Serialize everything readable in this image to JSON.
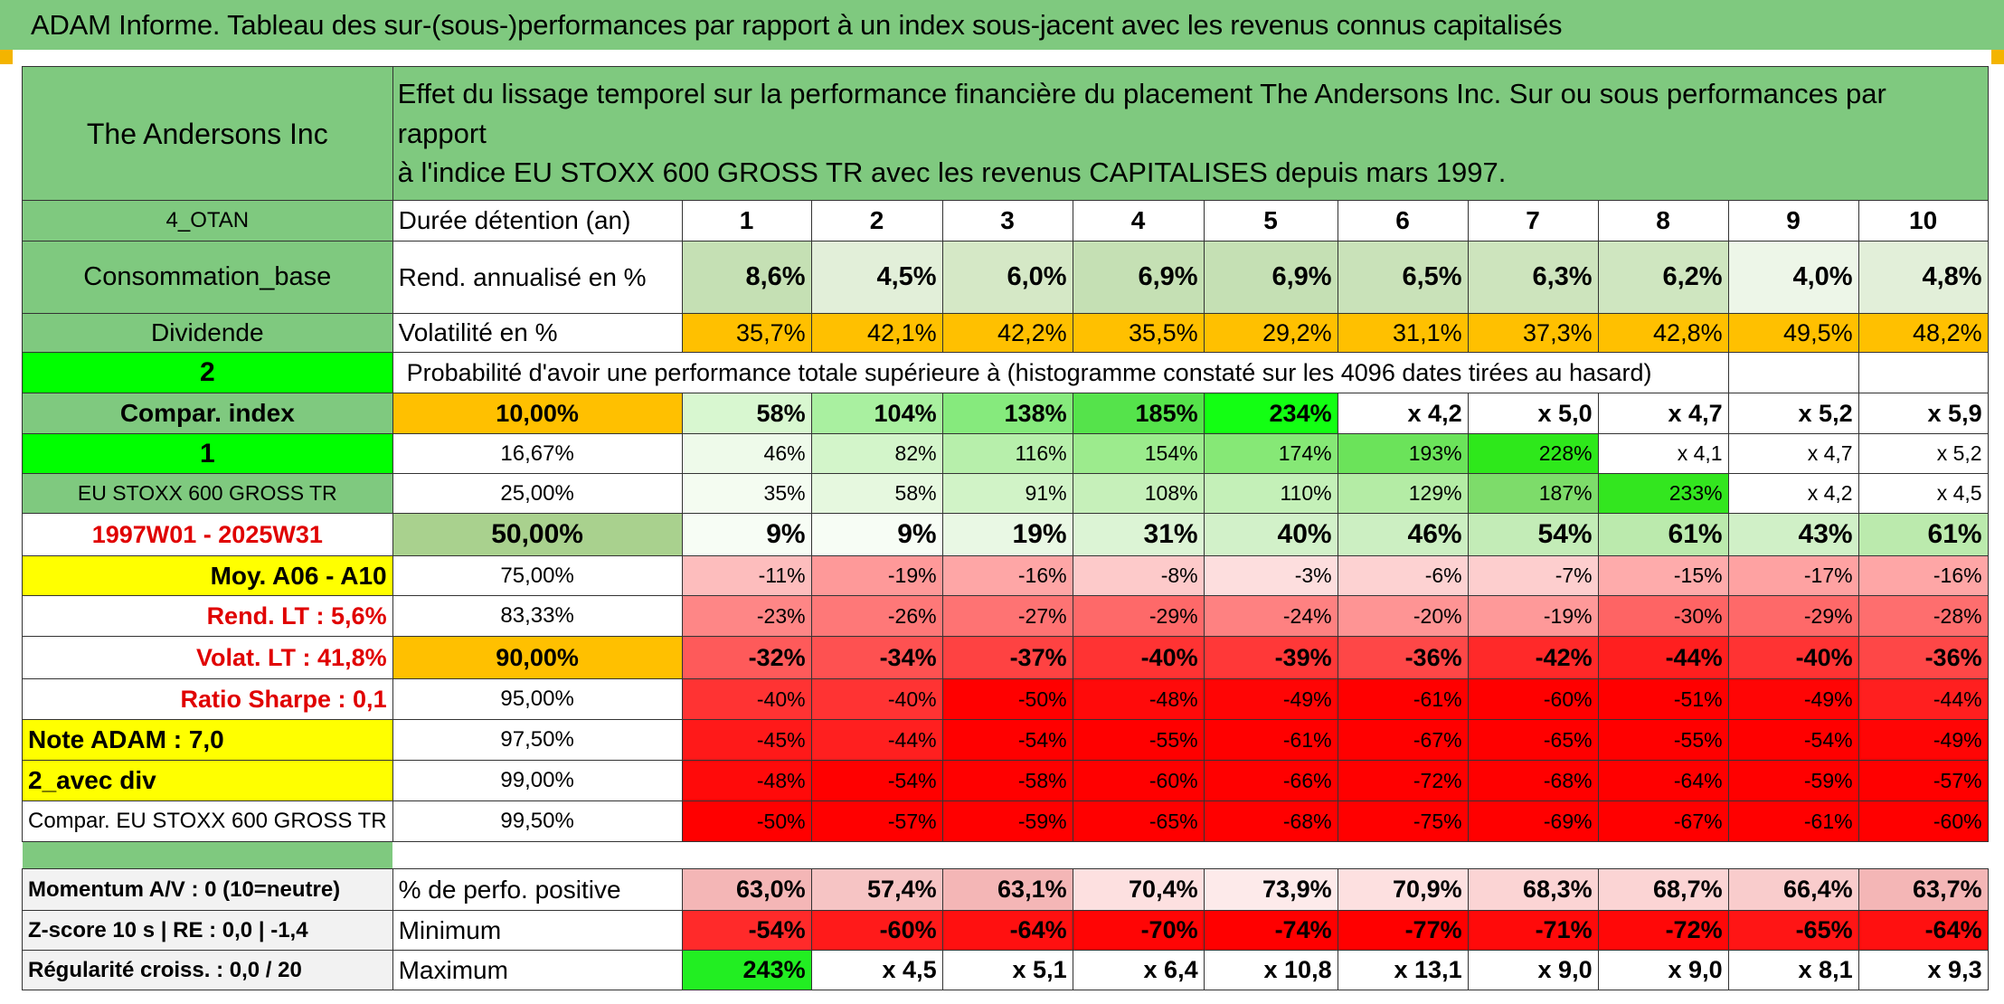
{
  "title": "ADAM Informe. Tableau des sur-(sous-)performances par rapport à un index sous-jacent avec les revenus connus capitalisés",
  "header": {
    "company": "The Andersons Inc",
    "description_line1": "Effet du lissage temporel sur la performance financière du placement The Andersons Inc. Sur ou sous performances par rapport",
    "description_line2": "à l'indice EU STOXX 600 GROSS TR avec les revenus CAPITALISES depuis mars 1997."
  },
  "left_panel": {
    "otan": "4_OTAN",
    "sector": "Consommation_base",
    "dividend": "Dividende",
    "selector_value": "2",
    "compar_index": "Compar. index",
    "selector_value2": "1",
    "index_name": "EU STOXX 600 GROSS TR",
    "period": "1997W01 - 2025W31",
    "moy": "Moy. A06 - A10",
    "rend_lt": "Rend. LT :   5,6%",
    "volat_lt": "Volat. LT :   41,8%",
    "sharpe": "Ratio Sharpe :   0,1",
    "note": "Note ADAM : 7,0",
    "avec_div": "2_avec div",
    "compar_full": "Compar. EU STOXX 600 GROSS TR"
  },
  "durations": {
    "label": "Durée détention (an)",
    "years": [
      "1",
      "2",
      "3",
      "4",
      "5",
      "6",
      "7",
      "8",
      "9",
      "10"
    ]
  },
  "rend": {
    "label": "Rend. annualisé en %",
    "values": [
      "8,6%",
      "4,5%",
      "6,0%",
      "6,9%",
      "6,9%",
      "6,5%",
      "6,3%",
      "6,2%",
      "4,0%",
      "4,8%"
    ]
  },
  "volat": {
    "label": "Volatilité en %",
    "values": [
      "35,7%",
      "42,1%",
      "42,2%",
      "35,5%",
      "29,2%",
      "31,1%",
      "37,3%",
      "42,8%",
      "49,5%",
      "48,2%"
    ]
  },
  "probability_title": "Probabilité d'avoir une performance totale supérieure à (histogramme constaté sur les 4096 dates tirées au hasard)",
  "prob_rows": [
    {
      "pct": "10,00%",
      "values": [
        "58%",
        "104%",
        "138%",
        "185%",
        "234%",
        "x 4,2",
        "x 5,0",
        "x 4,7",
        "x 5,2",
        "x 5,9"
      ]
    },
    {
      "pct": "16,67%",
      "values": [
        "46%",
        "82%",
        "116%",
        "154%",
        "174%",
        "193%",
        "228%",
        "x 4,1",
        "x 4,7",
        "x 5,2"
      ]
    },
    {
      "pct": "25,00%",
      "values": [
        "35%",
        "58%",
        "91%",
        "108%",
        "110%",
        "129%",
        "187%",
        "233%",
        "x 4,2",
        "x 4,5"
      ]
    },
    {
      "pct": "50,00%",
      "values": [
        "9%",
        "9%",
        "19%",
        "31%",
        "40%",
        "46%",
        "54%",
        "61%",
        "43%",
        "61%"
      ]
    },
    {
      "pct": "75,00%",
      "values": [
        "-11%",
        "-19%",
        "-16%",
        "-8%",
        "-3%",
        "-6%",
        "-7%",
        "-15%",
        "-17%",
        "-16%"
      ]
    },
    {
      "pct": "83,33%",
      "values": [
        "-23%",
        "-26%",
        "-27%",
        "-29%",
        "-24%",
        "-20%",
        "-19%",
        "-30%",
        "-29%",
        "-28%"
      ]
    },
    {
      "pct": "90,00%",
      "values": [
        "-32%",
        "-34%",
        "-37%",
        "-40%",
        "-39%",
        "-36%",
        "-42%",
        "-44%",
        "-40%",
        "-36%"
      ]
    },
    {
      "pct": "95,00%",
      "values": [
        "-40%",
        "-40%",
        "-50%",
        "-48%",
        "-49%",
        "-61%",
        "-60%",
        "-51%",
        "-49%",
        "-44%"
      ]
    },
    {
      "pct": "97,50%",
      "values": [
        "-45%",
        "-44%",
        "-54%",
        "-55%",
        "-61%",
        "-67%",
        "-65%",
        "-55%",
        "-54%",
        "-49%"
      ]
    },
    {
      "pct": "99,00%",
      "values": [
        "-48%",
        "-54%",
        "-58%",
        "-60%",
        "-66%",
        "-72%",
        "-68%",
        "-64%",
        "-59%",
        "-57%"
      ]
    },
    {
      "pct": "99,50%",
      "values": [
        "-50%",
        "-57%",
        "-59%",
        "-65%",
        "-68%",
        "-75%",
        "-69%",
        "-67%",
        "-61%",
        "-60%"
      ]
    }
  ],
  "bottom": {
    "momentum": "Momentum A/V : 0 (10=neutre)",
    "zscore": "Z-score 10 s | RE : 0,0 | -1,4",
    "regularite": "Régularité croiss. : 0,0 / 20",
    "positive_label": "% de perfo. positive",
    "positive_values": [
      "63,0%",
      "57,4%",
      "63,1%",
      "70,4%",
      "73,9%",
      "70,9%",
      "68,3%",
      "68,7%",
      "66,4%",
      "63,7%"
    ],
    "min_label": "Minimum",
    "min_values": [
      "-54%",
      "-60%",
      "-64%",
      "-70%",
      "-74%",
      "-77%",
      "-71%",
      "-72%",
      "-65%",
      "-64%"
    ],
    "max_label": "Maximum",
    "max_values": [
      "243%",
      "x 4,5",
      "x 5,1",
      "x 6,4",
      "x 10,8",
      "x 13,1",
      "x 9,0",
      "x 9,0",
      "x 8,1",
      "x 9,3"
    ]
  },
  "colors": {
    "header_green": "#7fc97f",
    "rend_green": "#c5e0b4",
    "volat_orange": "#ffc000",
    "selector_green": "#00ff00",
    "yellow": "#ffff00",
    "label_red": "#e00000"
  }
}
